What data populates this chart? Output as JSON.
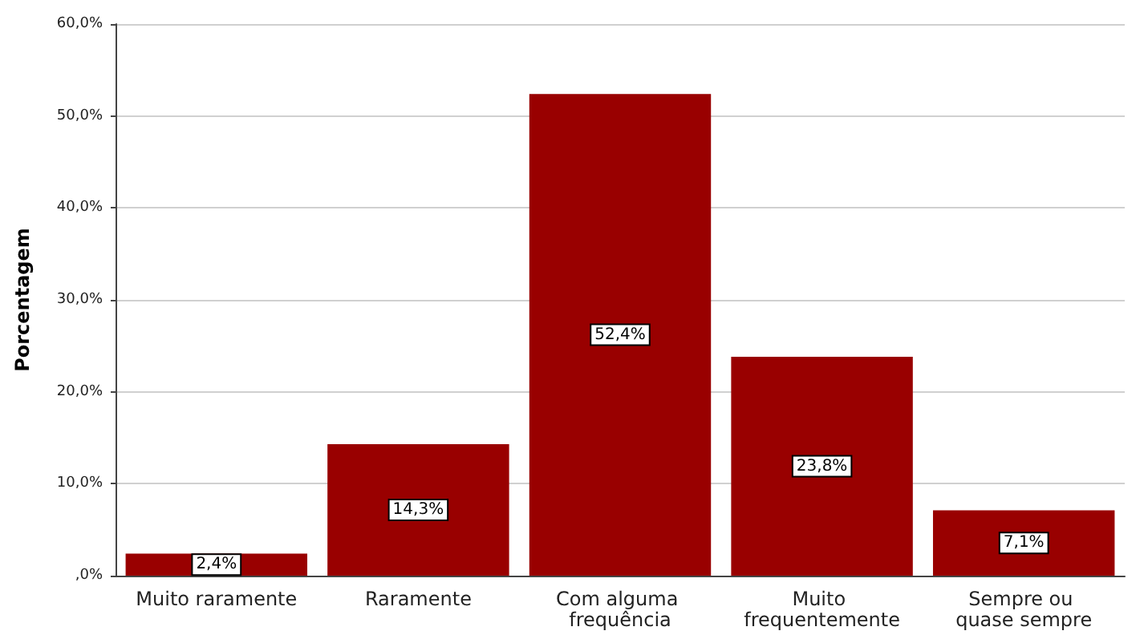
{
  "chart_data": {
    "type": "bar",
    "ylabel": "Porcentagem",
    "categories": [
      "Muito raramente",
      "Raramente",
      "Com alguma frequência",
      "Muito frequentemente",
      "Sempre ou quase sempre"
    ],
    "values": [
      2.4,
      14.3,
      52.4,
      23.8,
      7.1
    ],
    "color": "#990000",
    "value_labels": [
      "2,4%",
      "14,3%",
      "52,4%",
      "23,8%",
      "7,1%"
    ],
    "ylim": [
      0,
      60
    ],
    "yticks": [
      {
        "value": 0,
        "label": ",0%"
      },
      {
        "value": 10,
        "label": "10,0%"
      },
      {
        "value": 20,
        "label": "20,0%"
      },
      {
        "value": 30,
        "label": "30,0%"
      },
      {
        "value": 40,
        "label": "40,0%"
      },
      {
        "value": 50,
        "label": "50,0%"
      },
      {
        "value": 60,
        "label": "60,0%"
      }
    ],
    "grid": "y"
  }
}
